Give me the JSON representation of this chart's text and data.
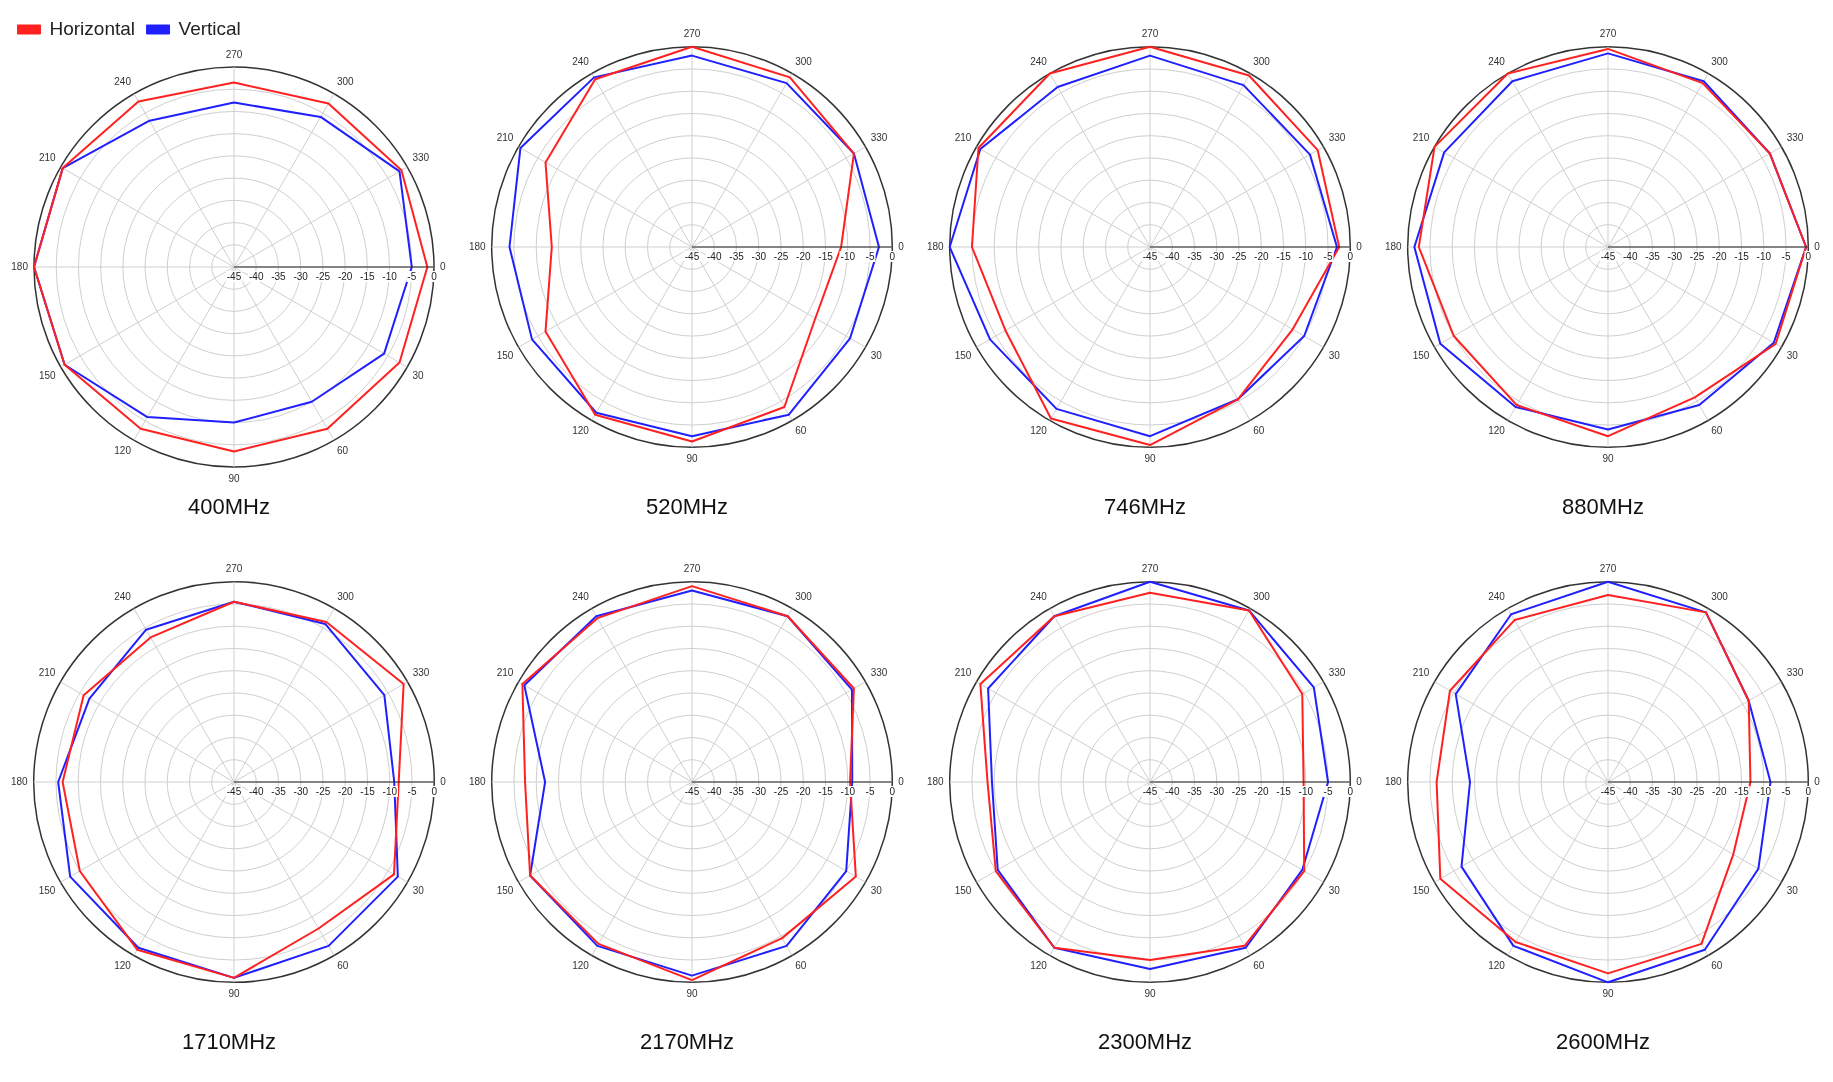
{
  "chart_data": [
    {
      "type": "radar",
      "title": "400MHz",
      "legend": "top left",
      "grid": true,
      "ylim": [
        -45,
        0
      ],
      "yticks": [
        -45,
        -40,
        -35,
        -30,
        -25,
        -20,
        -15,
        -10,
        -5,
        0
      ],
      "categories": [
        "270",
        "300",
        "330",
        "0",
        "30",
        "60",
        "90",
        "120",
        "150",
        "180",
        "210",
        "240"
      ],
      "series": [
        {
          "name": "Horizontal",
          "color": "#ff2020",
          "values": [
            -3.5,
            -2.5,
            -1.5,
            -1.5,
            -2,
            -3,
            -3.5,
            -3,
            -1,
            0,
            -0.5,
            -2
          ]
        },
        {
          "name": "Vertical",
          "color": "#2020ff",
          "values": [
            -8,
            -6,
            -2,
            -5,
            -6,
            -10,
            -10,
            -6,
            -1,
            0,
            -0.5,
            -7
          ]
        }
      ]
    },
    {
      "type": "radar",
      "title": "520MHz",
      "grid": true,
      "ylim": [
        -45,
        0
      ],
      "yticks": [
        -45,
        -40,
        -35,
        -30,
        -25,
        -20,
        -15,
        -10,
        -5,
        0
      ],
      "categories": [
        "270",
        "300",
        "330",
        "0",
        "30",
        "60",
        "90",
        "120",
        "150",
        "180",
        "210",
        "240"
      ],
      "series": [
        {
          "color": "#ff2020",
          "values": [
            0,
            -1,
            -3,
            -11.5,
            -13,
            -3.5,
            -1.3,
            -1.5,
            -7,
            -13.5,
            -7,
            -1.5
          ]
        },
        {
          "color": "#2020ff",
          "values": [
            -2,
            -2.5,
            -3,
            -3,
            -4,
            -1.5,
            -2.5,
            -2,
            -3.5,
            -4,
            -0.5,
            -1
          ]
        }
      ]
    },
    {
      "type": "radar",
      "title": "746MHz",
      "grid": true,
      "ylim": [
        -45,
        0
      ],
      "yticks": [
        -45,
        -40,
        -35,
        -30,
        -25,
        -20,
        -15,
        -10,
        -5,
        0
      ],
      "categories": [
        "270",
        "300",
        "330",
        "0",
        "30",
        "60",
        "90",
        "120",
        "150",
        "180",
        "210",
        "240"
      ],
      "series": [
        {
          "color": "#ff2020",
          "values": [
            0,
            -0.5,
            -1.5,
            -2.5,
            -8,
            -5.5,
            -0.5,
            -0.5,
            -7.5,
            -5,
            -0.5,
            0
          ]
        },
        {
          "color": "#2020ff",
          "values": [
            -2,
            -3,
            -3.5,
            -3,
            -5,
            -5.5,
            -2.5,
            -3,
            -3.5,
            0,
            -1,
            -3.5
          ]
        }
      ]
    },
    {
      "type": "radar",
      "title": "880MHz",
      "grid": true,
      "ylim": [
        -45,
        0
      ],
      "yticks": [
        -45,
        -40,
        -35,
        -30,
        -25,
        -20,
        -15,
        -10,
        -5,
        0
      ],
      "categories": [
        "270",
        "300",
        "330",
        "0",
        "30",
        "60",
        "90",
        "120",
        "150",
        "180",
        "210",
        "240"
      ],
      "series": [
        {
          "color": "#ff2020",
          "values": [
            -0.5,
            -2.5,
            -3,
            -0.5,
            -1.5,
            -6,
            -2.5,
            -4,
            -5,
            -2.5,
            0,
            0
          ]
        },
        {
          "color": "#2020ff",
          "values": [
            -1.5,
            -2,
            -3,
            -0.5,
            -2,
            -4,
            -4,
            -3.5,
            -1.5,
            -1.5,
            -2.5,
            -2
          ]
        }
      ]
    },
    {
      "type": "radar",
      "title": "1710MHz",
      "grid": true,
      "ylim": [
        -45,
        0
      ],
      "yticks": [
        -45,
        -40,
        -35,
        -30,
        -25,
        -20,
        -15,
        -10,
        -5,
        0
      ],
      "categories": [
        "270",
        "300",
        "330",
        "0",
        "30",
        "60",
        "90",
        "120",
        "150",
        "180",
        "210",
        "240"
      ],
      "series": [
        {
          "color": "#ff2020",
          "values": [
            -4.5,
            -3.5,
            -1,
            -8,
            -3.5,
            -7,
            -1,
            -1.5,
            -5,
            -6.5,
            -6,
            -7.5
          ]
        },
        {
          "color": "#2020ff",
          "values": [
            -4.5,
            -4,
            -6,
            -9,
            -2.5,
            -2.5,
            -1,
            -2,
            -2.5,
            -5.5,
            -7.5,
            -5.5
          ]
        }
      ]
    },
    {
      "type": "radar",
      "title": "2170MHz",
      "grid": true,
      "ylim": [
        -45,
        0
      ],
      "yticks": [
        -45,
        -40,
        -35,
        -30,
        -25,
        -20,
        -15,
        -10,
        -5,
        0
      ],
      "categories": [
        "270",
        "300",
        "330",
        "0",
        "30",
        "60",
        "90",
        "120",
        "150",
        "180",
        "210",
        "240"
      ],
      "series": [
        {
          "color": "#ff2020",
          "values": [
            -1,
            -2,
            -3,
            -9.5,
            -2.5,
            -4.5,
            -0.5,
            -3,
            -3,
            -7.5,
            -1,
            -2.5
          ]
        },
        {
          "color": "#2020ff",
          "values": [
            -2,
            -2,
            -3.5,
            -9,
            -5,
            -2.5,
            -1.5,
            -2.5,
            -3,
            -12,
            -1.5,
            -2
          ]
        }
      ]
    },
    {
      "type": "radar",
      "title": "2300MHz",
      "grid": true,
      "ylim": [
        -45,
        0
      ],
      "yticks": [
        -45,
        -40,
        -35,
        -30,
        -25,
        -20,
        -15,
        -10,
        -5,
        0
      ],
      "categories": [
        "270",
        "300",
        "330",
        "0",
        "30",
        "60",
        "90",
        "120",
        "150",
        "180",
        "210",
        "240"
      ],
      "series": [
        {
          "color": "#ff2020",
          "values": [
            -2.5,
            -0.5,
            -5.5,
            -10.5,
            -5,
            -2.5,
            -5,
            -2,
            -5,
            -8.5,
            -1,
            -2
          ]
        },
        {
          "color": "#2020ff",
          "values": [
            0,
            -0.5,
            -2.5,
            -5,
            -5.5,
            -2,
            -3,
            -2,
            -5.5,
            -9.5,
            -3,
            -2
          ]
        }
      ]
    },
    {
      "type": "radar",
      "title": "2600MHz",
      "grid": true,
      "ylim": [
        -45,
        0
      ],
      "yticks": [
        -45,
        -40,
        -35,
        -30,
        -25,
        -20,
        -15,
        -10,
        -5,
        0
      ],
      "categories": [
        "270",
        "300",
        "330",
        "0",
        "30",
        "60",
        "90",
        "120",
        "150",
        "180",
        "210",
        "240"
      ],
      "series": [
        {
          "color": "#ff2020",
          "values": [
            -3,
            -1,
            -8.5,
            -13,
            -12.5,
            -3,
            -2,
            -3.5,
            -1.5,
            -6.5,
            -4,
            -3
          ]
        },
        {
          "color": "#2020ff",
          "values": [
            0,
            -1,
            -8.5,
            -8.5,
            -6,
            -1.5,
            0,
            -2.5,
            -7,
            -14,
            -5.5,
            -1.5
          ]
        }
      ]
    }
  ]
}
